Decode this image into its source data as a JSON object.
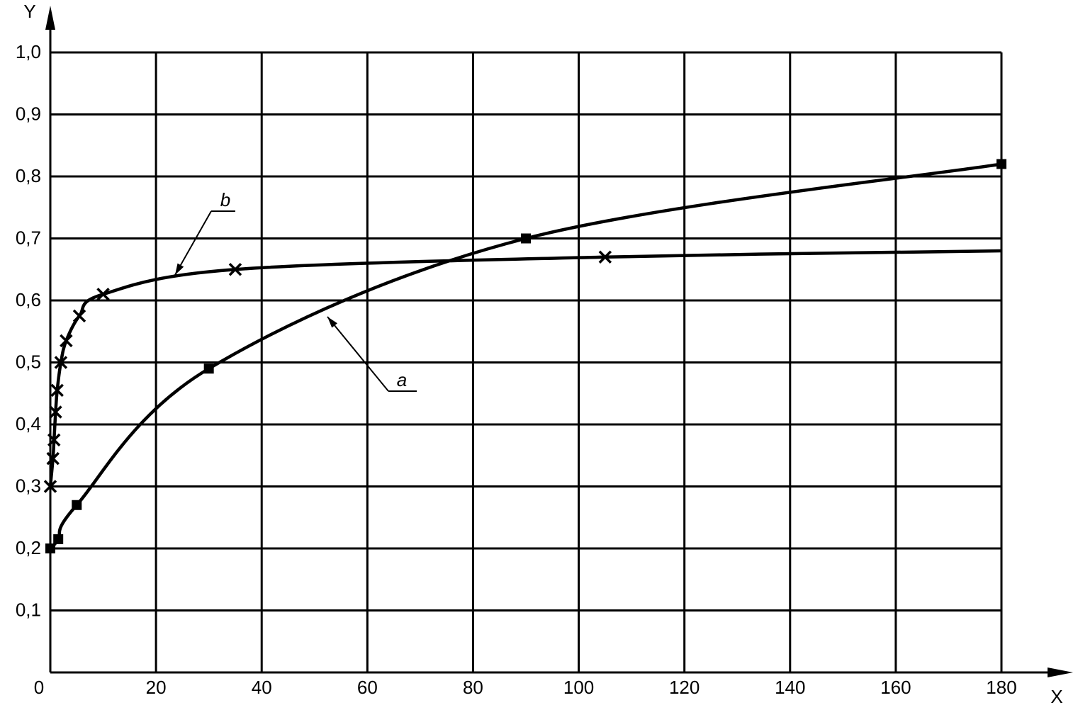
{
  "chart_data": {
    "type": "scatter",
    "xlabel": "X",
    "ylabel": "Y",
    "xlim": [
      0,
      180
    ],
    "ylim": [
      0,
      1.0
    ],
    "xticks": [
      0,
      20,
      40,
      60,
      80,
      100,
      120,
      140,
      160,
      180
    ],
    "yticks": [
      {
        "value": 0.1,
        "label": "0,1"
      },
      {
        "value": 0.2,
        "label": "0,2"
      },
      {
        "value": 0.3,
        "label": "0,3"
      },
      {
        "value": 0.4,
        "label": "0,4"
      },
      {
        "value": 0.5,
        "label": "0,5"
      },
      {
        "value": 0.6,
        "label": "0,6"
      },
      {
        "value": 0.7,
        "label": "0,7"
      },
      {
        "value": 0.8,
        "label": "0,8"
      },
      {
        "value": 0.9,
        "label": "0,9"
      },
      {
        "value": 1.0,
        "label": "1,0"
      }
    ],
    "grid": true,
    "series": [
      {
        "name": "a",
        "marker": "square",
        "color": "#000000",
        "x": [
          0,
          1.5,
          5,
          30,
          90,
          180
        ],
        "values": [
          0.2,
          0.215,
          0.27,
          0.49,
          0.7,
          0.82
        ]
      },
      {
        "name": "b",
        "marker": "cross",
        "color": "#000000",
        "x": [
          0,
          0.5,
          0.7,
          1,
          1.3,
          2,
          3,
          5.5,
          10,
          35,
          105
        ],
        "values": [
          0.3,
          0.345,
          0.375,
          0.42,
          0.455,
          0.5,
          0.535,
          0.575,
          0.61,
          0.65,
          0.67
        ],
        "curve_end": [
          180,
          0.68
        ]
      }
    ]
  }
}
